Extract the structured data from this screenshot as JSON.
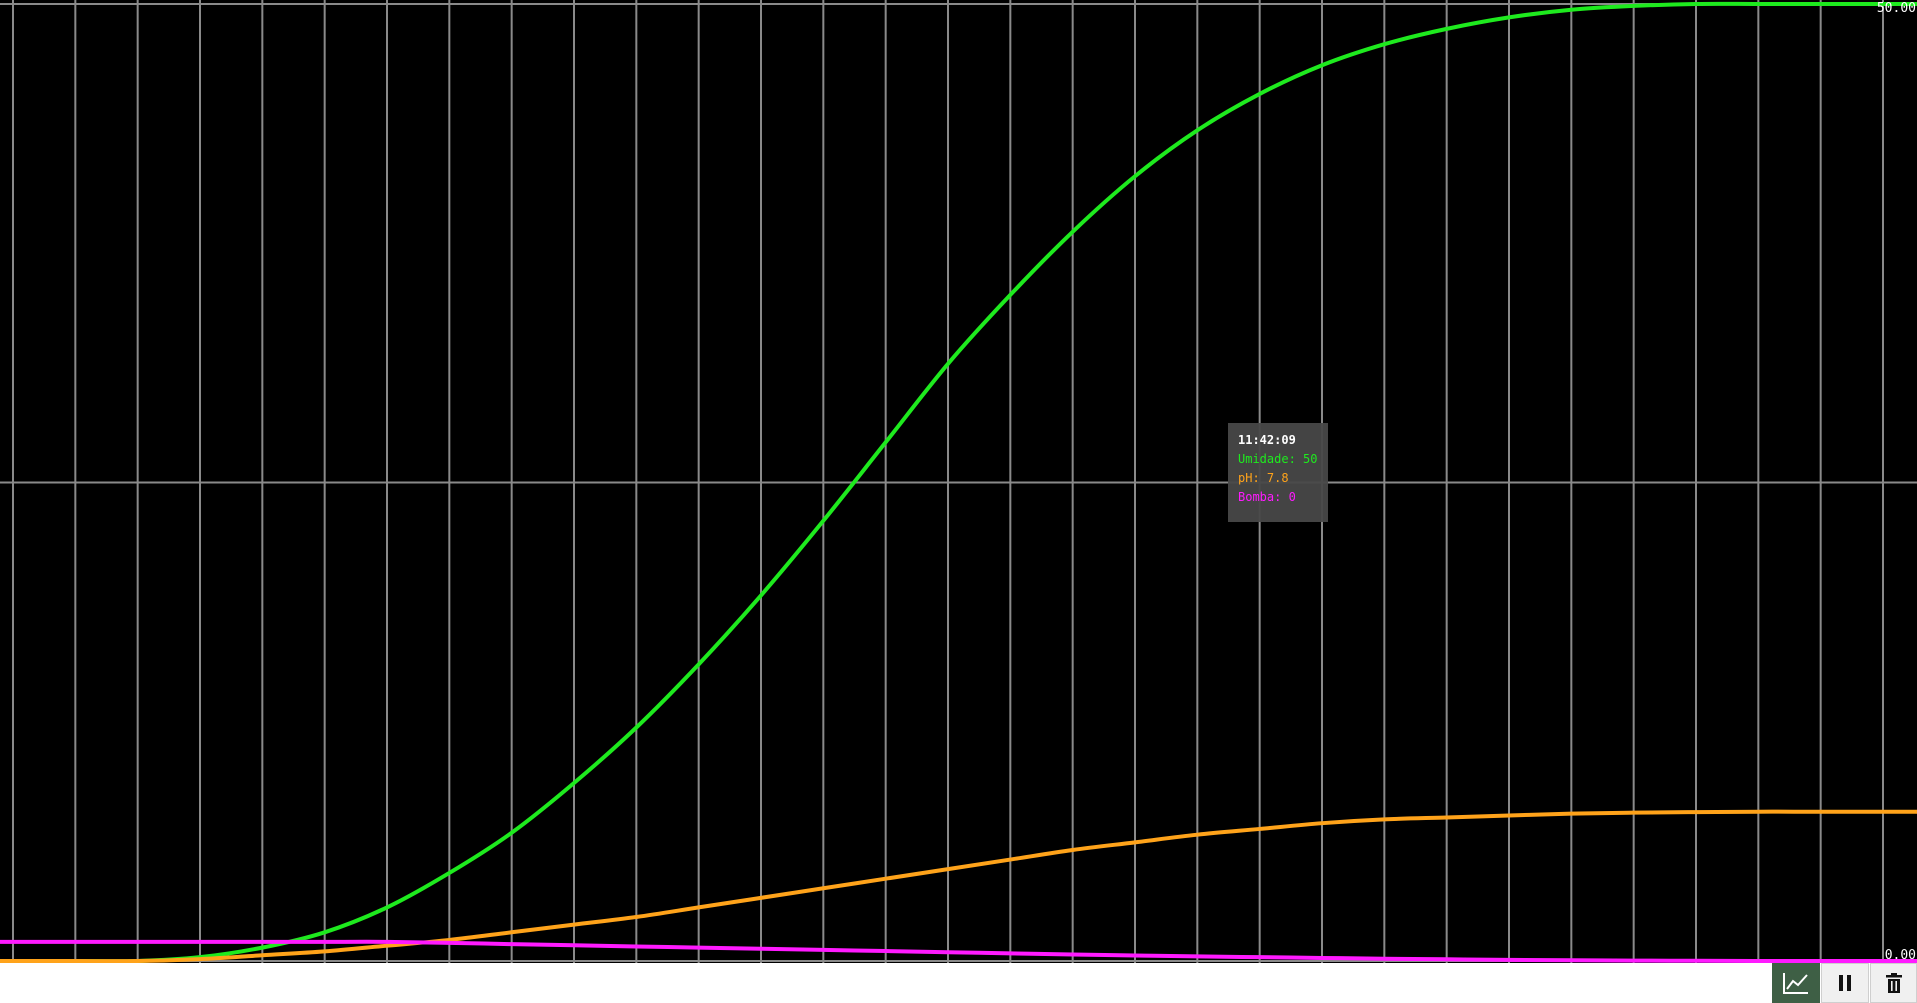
{
  "chart_data": {
    "type": "line",
    "ylim": [
      0,
      50
    ],
    "y_tick_labels": [
      "50.00",
      "0.00"
    ],
    "grid": true,
    "x_points": 31,
    "series": [
      {
        "name": "Umidade",
        "color": "#1eea1e",
        "values": [
          0,
          0,
          0,
          0.2,
          0.7,
          1.5,
          2.8,
          4.6,
          6.7,
          9.3,
          12.2,
          15.5,
          19.1,
          23,
          27.1,
          31.2,
          34.8,
          38.1,
          41,
          43.4,
          45.3,
          46.8,
          47.9,
          48.7,
          49.3,
          49.7,
          49.9,
          50,
          50,
          50,
          50
        ]
      },
      {
        "name": "pH",
        "color": "#ffa31a",
        "values": [
          0,
          0,
          0,
          0.1,
          0.3,
          0.5,
          0.8,
          1.1,
          1.5,
          1.9,
          2.3,
          2.8,
          3.3,
          3.8,
          4.3,
          4.8,
          5.3,
          5.8,
          6.2,
          6.6,
          6.9,
          7.2,
          7.4,
          7.5,
          7.6,
          7.7,
          7.75,
          7.78,
          7.8,
          7.8,
          7.8
        ]
      },
      {
        "name": "Bomba",
        "color": "#ff1aff",
        "values": [
          1,
          1,
          1,
          1,
          1,
          1,
          1,
          0.95,
          0.88,
          0.82,
          0.76,
          0.7,
          0.64,
          0.58,
          0.52,
          0.46,
          0.4,
          0.34,
          0.29,
          0.24,
          0.2,
          0.16,
          0.12,
          0.09,
          0.06,
          0.04,
          0.02,
          0.01,
          0,
          0,
          0
        ]
      }
    ]
  },
  "tooltip": {
    "time": "11:42:09",
    "umidade": "Umidade: 50",
    "ph": "pH: 7.8",
    "bomba": "Bomba: 0"
  },
  "toolbar": {
    "chart_icon": "line-chart-icon",
    "pause_icon": "pause-icon",
    "clear_icon": "trash-icon"
  }
}
